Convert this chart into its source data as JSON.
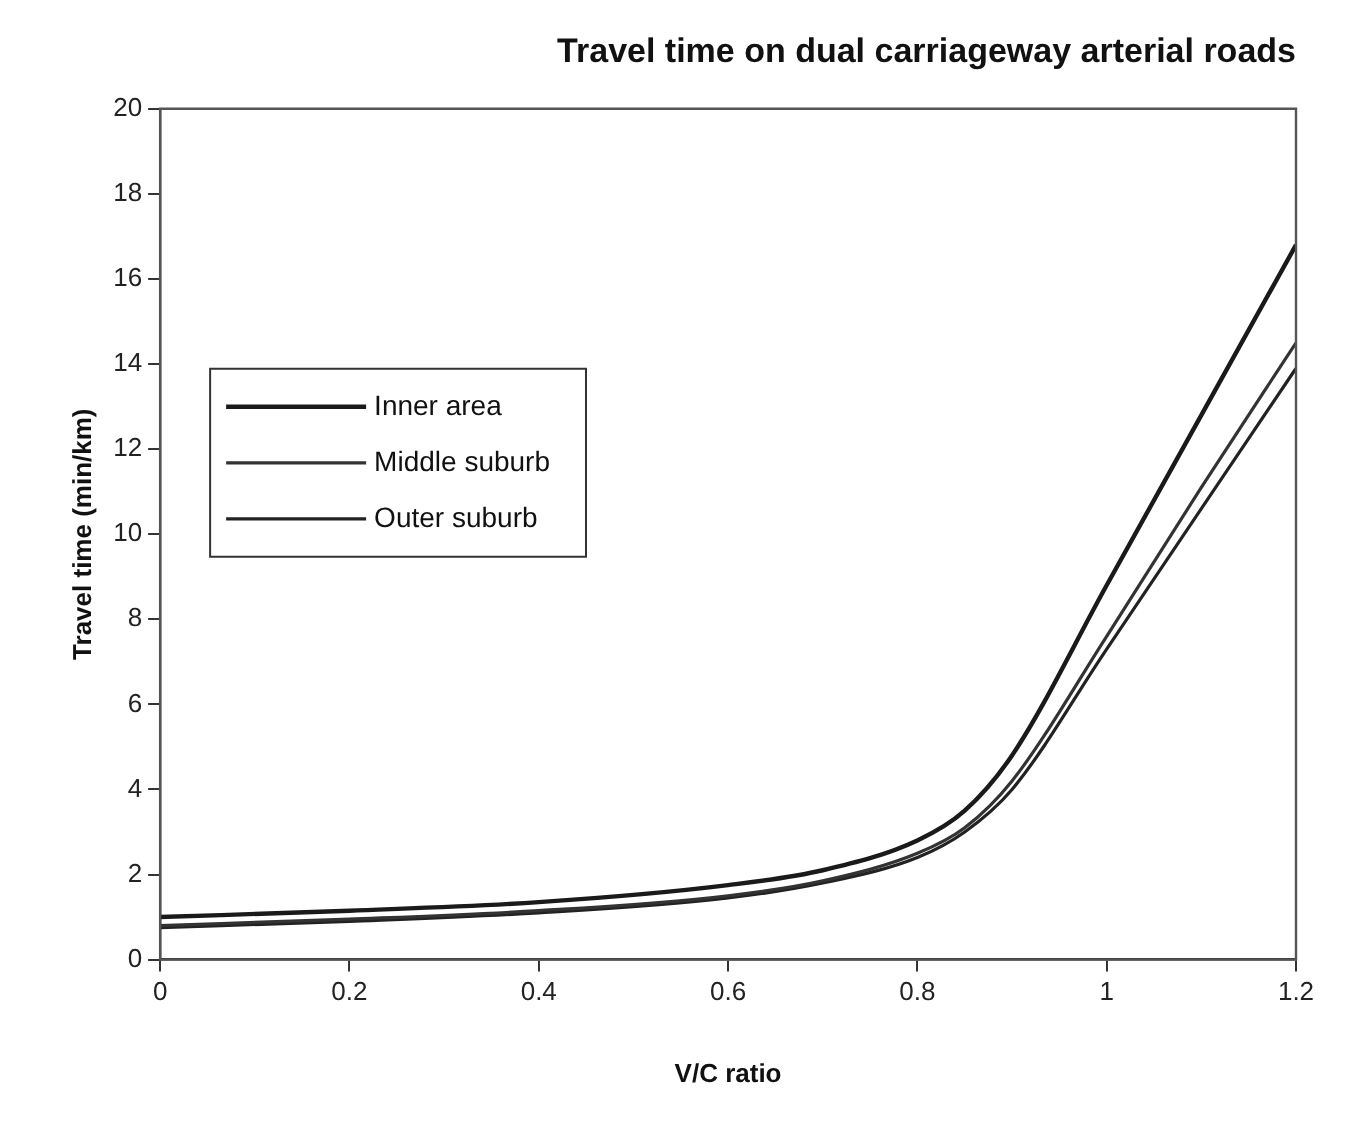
{
  "chart_data": {
    "type": "line",
    "title": "Travel time on dual carriageway arterial roads",
    "xlabel": "V/C ratio",
    "ylabel": "Travel time (min/km)",
    "x": [
      0,
      0.2,
      0.4,
      0.6,
      0.7,
      0.8,
      0.85,
      0.9,
      1.0,
      1.1,
      1.2
    ],
    "series": [
      {
        "name": "Inner area",
        "color": "#1a1a1a",
        "values": [
          1.0,
          1.15,
          1.35,
          1.75,
          2.1,
          2.8,
          3.5,
          4.8,
          8.8,
          12.8,
          16.8
        ]
      },
      {
        "name": "Middle suburb",
        "color": "#333333",
        "values": [
          0.8,
          0.95,
          1.15,
          1.5,
          1.85,
          2.5,
          3.1,
          4.2,
          7.6,
          11.1,
          14.5
        ]
      },
      {
        "name": "Outer suburb",
        "color": "#222222",
        "values": [
          0.75,
          0.9,
          1.1,
          1.45,
          1.8,
          2.4,
          3.0,
          4.0,
          7.3,
          10.6,
          13.9
        ]
      }
    ],
    "xlim": [
      0,
      1.2
    ],
    "xticks": [
      0,
      0.2,
      0.4,
      0.6,
      0.8,
      1,
      1.2
    ],
    "ylim": [
      0,
      20
    ],
    "yticks": [
      0,
      2,
      4,
      6,
      8,
      10,
      12,
      14,
      16,
      18,
      20
    ],
    "grid": false,
    "legend": "left",
    "marker": "none",
    "line_style": "solid"
  }
}
